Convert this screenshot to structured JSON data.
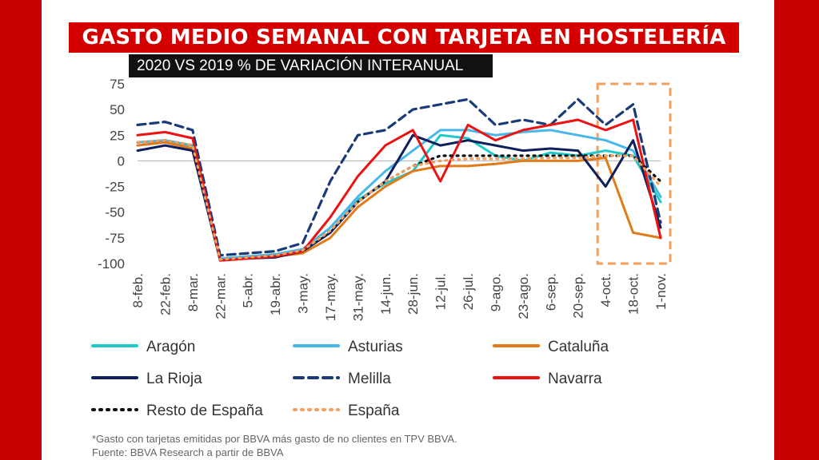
{
  "header": {
    "title": "GASTO MEDIO SEMANAL CON TARJETA EN HOSTELERÍA",
    "subtitle": "2020 VS 2019 % DE VARIACIÓN INTERANUAL"
  },
  "footnote": {
    "line1": "*Gasto con tarjetas emitidas por BBVA más gasto de no clientes en TPV BBVA.",
    "line2": "Fuente: BBVA Research a partir de BBVA"
  },
  "chart_data": {
    "type": "line",
    "title": "GASTO MEDIO SEMANAL CON TARJETA EN HOSTELERÍA",
    "subtitle": "2020 VS 2019 % DE VARIACIÓN INTERANUAL",
    "xlabel": "",
    "ylabel": "",
    "ylim": [
      -100,
      75
    ],
    "yticks": [
      75,
      50,
      25,
      0,
      -25,
      -50,
      -75,
      -100
    ],
    "grid": false,
    "legend_position": "bottom",
    "categories": [
      "8-feb.",
      "22-feb.",
      "8-mar.",
      "22-mar.",
      "5-abr.",
      "19-abr.",
      "3-may.",
      "17-may.",
      "31-may.",
      "14-jun.",
      "28-jun.",
      "12-jul.",
      "26-jul.",
      "9-ago.",
      "23-ago.",
      "6-sep.",
      "20-sep.",
      "4-oct.",
      "18-oct.",
      "1-nov."
    ],
    "highlight_range": [
      "4-oct.",
      "1-nov."
    ],
    "series": [
      {
        "name": "Aragón",
        "color": "#1fc9c9",
        "style": "solid",
        "values": [
          18,
          20,
          15,
          -95,
          -94,
          -92,
          -88,
          -70,
          -38,
          -22,
          -10,
          25,
          22,
          5,
          0,
          8,
          5,
          10,
          5,
          -40
        ]
      },
      {
        "name": "Asturias",
        "color": "#47b8ea",
        "style": "solid",
        "values": [
          18,
          20,
          12,
          -95,
          -93,
          -91,
          -86,
          -65,
          -35,
          -10,
          10,
          30,
          30,
          25,
          28,
          30,
          25,
          20,
          10,
          -35
        ]
      },
      {
        "name": "Cataluña",
        "color": "#e07a1a",
        "style": "solid",
        "values": [
          15,
          18,
          12,
          -97,
          -95,
          -93,
          -90,
          -75,
          -45,
          -25,
          -10,
          -5,
          -5,
          -3,
          0,
          0,
          0,
          3,
          -70,
          -75
        ]
      },
      {
        "name": "La Rioja",
        "color": "#0f1f5c",
        "style": "solid",
        "values": [
          10,
          15,
          10,
          -97,
          -95,
          -94,
          -88,
          -70,
          -40,
          -20,
          25,
          15,
          20,
          15,
          10,
          12,
          10,
          -25,
          20,
          -65
        ]
      },
      {
        "name": "Melilla",
        "color": "#1b3a78",
        "style": "dashed",
        "values": [
          35,
          38,
          30,
          -92,
          -90,
          -88,
          -80,
          -20,
          25,
          30,
          50,
          55,
          60,
          35,
          40,
          35,
          60,
          35,
          55,
          -60
        ]
      },
      {
        "name": "Navarra",
        "color": "#ee1111",
        "style": "solid",
        "values": [
          25,
          28,
          22,
          -97,
          -95,
          -93,
          -88,
          -55,
          -15,
          15,
          30,
          -20,
          35,
          20,
          30,
          35,
          40,
          30,
          40,
          -75
        ]
      },
      {
        "name": "Resto de España",
        "color": "#111111",
        "style": "dotted",
        "values": [
          18,
          20,
          15,
          -96,
          -94,
          -92,
          -87,
          -68,
          -40,
          -20,
          -5,
          5,
          5,
          5,
          5,
          5,
          5,
          5,
          5,
          -20
        ]
      },
      {
        "name": "España",
        "color": "#f2a060",
        "style": "dotted",
        "values": [
          18,
          20,
          15,
          -96,
          -94,
          -92,
          -87,
          -68,
          -40,
          -20,
          -5,
          0,
          2,
          2,
          2,
          3,
          3,
          5,
          5,
          -25
        ]
      }
    ]
  }
}
